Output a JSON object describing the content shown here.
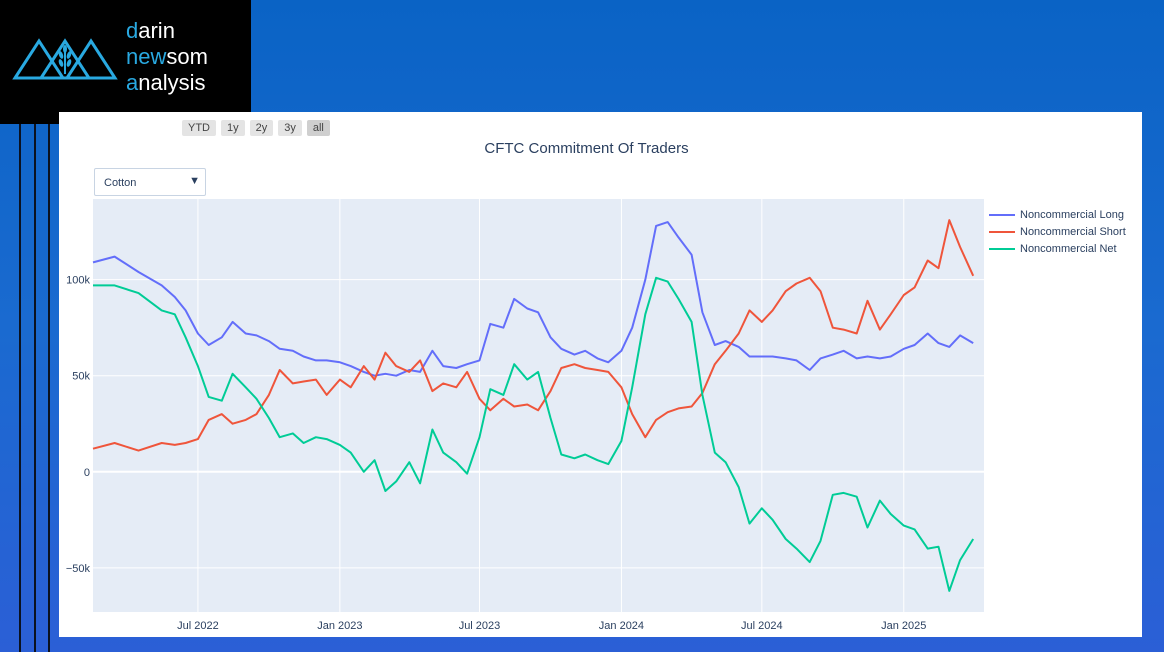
{
  "logo": {
    "line1_accent": "d",
    "line1_rest": "arin",
    "line2_accent": "new",
    "line2_rest": "som",
    "line3_accent": "a",
    "line3_rest": "nalysis"
  },
  "range_selector": {
    "buttons": [
      "YTD",
      "1y",
      "2y",
      "3y",
      "all"
    ],
    "active": "all"
  },
  "dropdown": {
    "selected": "Cotton",
    "arrow_icon": "triangle-down-icon"
  },
  "colors": {
    "long": "#636efa",
    "short": "#ef553b",
    "net": "#00cc96",
    "plot_bg": "#e5ecf6",
    "accent": "#29a9e1"
  },
  "chart_data": {
    "type": "line",
    "title": "CFTC Commitment Of Traders",
    "xlabel": "",
    "ylabel": "",
    "x_range": [
      "2022-02-15",
      "2025-04-15"
    ],
    "ylim": [
      -73000,
      142000
    ],
    "x_ticks": [
      {
        "date": "2022-07-01",
        "label": "Jul 2022"
      },
      {
        "date": "2023-01-01",
        "label": "Jan 2023"
      },
      {
        "date": "2023-07-01",
        "label": "Jul 2023"
      },
      {
        "date": "2024-01-01",
        "label": "Jan 2024"
      },
      {
        "date": "2024-07-01",
        "label": "Jul 2024"
      },
      {
        "date": "2025-01-01",
        "label": "Jan 2025"
      }
    ],
    "y_ticks": [
      {
        "value": -50000,
        "label": "−50k"
      },
      {
        "value": 0,
        "label": "0"
      },
      {
        "value": 50000,
        "label": "50k"
      },
      {
        "value": 100000,
        "label": "100k"
      }
    ],
    "grid": true,
    "legend_position": "top-right",
    "series": [
      {
        "name": "Noncommercial Long",
        "color": "#636efa",
        "points": [
          [
            "2022-02-15",
            109000
          ],
          [
            "2022-03-15",
            112000
          ],
          [
            "2022-04-15",
            104000
          ],
          [
            "2022-05-15",
            97000
          ],
          [
            "2022-06-01",
            91000
          ],
          [
            "2022-06-15",
            84000
          ],
          [
            "2022-07-01",
            72000
          ],
          [
            "2022-07-15",
            66000
          ],
          [
            "2022-08-01",
            70000
          ],
          [
            "2022-08-15",
            78000
          ],
          [
            "2022-09-01",
            72000
          ],
          [
            "2022-09-15",
            71000
          ],
          [
            "2022-10-01",
            68000
          ],
          [
            "2022-10-15",
            64000
          ],
          [
            "2022-11-01",
            63000
          ],
          [
            "2022-11-15",
            60000
          ],
          [
            "2022-12-01",
            58000
          ],
          [
            "2022-12-15",
            58000
          ],
          [
            "2023-01-01",
            57000
          ],
          [
            "2023-01-15",
            55000
          ],
          [
            "2023-02-01",
            52000
          ],
          [
            "2023-02-15",
            50000
          ],
          [
            "2023-03-01",
            51000
          ],
          [
            "2023-03-15",
            50000
          ],
          [
            "2023-04-01",
            53000
          ],
          [
            "2023-04-15",
            52000
          ],
          [
            "2023-05-01",
            63000
          ],
          [
            "2023-05-15",
            55000
          ],
          [
            "2023-06-01",
            54000
          ],
          [
            "2023-06-15",
            56000
          ],
          [
            "2023-07-01",
            58000
          ],
          [
            "2023-07-15",
            77000
          ],
          [
            "2023-08-01",
            75000
          ],
          [
            "2023-08-15",
            90000
          ],
          [
            "2023-09-01",
            85000
          ],
          [
            "2023-09-15",
            83000
          ],
          [
            "2023-10-01",
            70000
          ],
          [
            "2023-10-15",
            64000
          ],
          [
            "2023-11-01",
            61000
          ],
          [
            "2023-11-15",
            63000
          ],
          [
            "2023-12-01",
            59000
          ],
          [
            "2023-12-15",
            57000
          ],
          [
            "2024-01-01",
            63000
          ],
          [
            "2024-01-15",
            75000
          ],
          [
            "2024-02-01",
            100000
          ],
          [
            "2024-02-15",
            128000
          ],
          [
            "2024-03-01",
            130000
          ],
          [
            "2024-03-15",
            122000
          ],
          [
            "2024-04-01",
            113000
          ],
          [
            "2024-04-15",
            83000
          ],
          [
            "2024-05-01",
            66000
          ],
          [
            "2024-05-15",
            68000
          ],
          [
            "2024-06-01",
            65000
          ],
          [
            "2024-06-15",
            60000
          ],
          [
            "2024-07-01",
            60000
          ],
          [
            "2024-07-15",
            60000
          ],
          [
            "2024-08-01",
            59000
          ],
          [
            "2024-08-15",
            58000
          ],
          [
            "2024-09-01",
            53000
          ],
          [
            "2024-09-15",
            59000
          ],
          [
            "2024-10-01",
            61000
          ],
          [
            "2024-10-15",
            63000
          ],
          [
            "2024-11-01",
            59000
          ],
          [
            "2024-11-15",
            60000
          ],
          [
            "2024-12-01",
            59000
          ],
          [
            "2024-12-15",
            60000
          ],
          [
            "2025-01-01",
            64000
          ],
          [
            "2025-01-15",
            66000
          ],
          [
            "2025-02-01",
            72000
          ],
          [
            "2025-02-15",
            67000
          ],
          [
            "2025-03-01",
            65000
          ],
          [
            "2025-03-15",
            71000
          ],
          [
            "2025-04-01",
            67000
          ]
        ]
      },
      {
        "name": "Noncommercial Short",
        "color": "#ef553b",
        "points": [
          [
            "2022-02-15",
            12000
          ],
          [
            "2022-03-15",
            15000
          ],
          [
            "2022-04-15",
            11000
          ],
          [
            "2022-05-15",
            15000
          ],
          [
            "2022-06-01",
            14000
          ],
          [
            "2022-06-15",
            15000
          ],
          [
            "2022-07-01",
            17000
          ],
          [
            "2022-07-15",
            27000
          ],
          [
            "2022-08-01",
            30000
          ],
          [
            "2022-08-15",
            25000
          ],
          [
            "2022-09-01",
            27000
          ],
          [
            "2022-09-15",
            30000
          ],
          [
            "2022-10-01",
            40000
          ],
          [
            "2022-10-15",
            53000
          ],
          [
            "2022-11-01",
            46000
          ],
          [
            "2022-11-15",
            47000
          ],
          [
            "2022-12-01",
            48000
          ],
          [
            "2022-12-15",
            40000
          ],
          [
            "2023-01-01",
            48000
          ],
          [
            "2023-01-15",
            44000
          ],
          [
            "2023-02-01",
            55000
          ],
          [
            "2023-02-15",
            48000
          ],
          [
            "2023-03-01",
            62000
          ],
          [
            "2023-03-15",
            55000
          ],
          [
            "2023-04-01",
            52000
          ],
          [
            "2023-04-15",
            58000
          ],
          [
            "2023-05-01",
            42000
          ],
          [
            "2023-05-15",
            46000
          ],
          [
            "2023-06-01",
            44000
          ],
          [
            "2023-06-15",
            52000
          ],
          [
            "2023-07-01",
            38000
          ],
          [
            "2023-07-15",
            32000
          ],
          [
            "2023-08-01",
            38000
          ],
          [
            "2023-08-15",
            34000
          ],
          [
            "2023-09-01",
            35000
          ],
          [
            "2023-09-15",
            32000
          ],
          [
            "2023-10-01",
            42000
          ],
          [
            "2023-10-15",
            54000
          ],
          [
            "2023-11-01",
            56000
          ],
          [
            "2023-11-15",
            54000
          ],
          [
            "2023-12-01",
            53000
          ],
          [
            "2023-12-15",
            52000
          ],
          [
            "2024-01-01",
            44000
          ],
          [
            "2024-01-15",
            30000
          ],
          [
            "2024-02-01",
            18000
          ],
          [
            "2024-02-15",
            27000
          ],
          [
            "2024-03-01",
            31000
          ],
          [
            "2024-03-15",
            33000
          ],
          [
            "2024-04-01",
            34000
          ],
          [
            "2024-04-15",
            41000
          ],
          [
            "2024-05-01",
            56000
          ],
          [
            "2024-05-15",
            63000
          ],
          [
            "2024-06-01",
            72000
          ],
          [
            "2024-06-15",
            84000
          ],
          [
            "2024-07-01",
            78000
          ],
          [
            "2024-07-15",
            84000
          ],
          [
            "2024-08-01",
            94000
          ],
          [
            "2024-08-15",
            98000
          ],
          [
            "2024-09-01",
            101000
          ],
          [
            "2024-09-15",
            94000
          ],
          [
            "2024-10-01",
            75000
          ],
          [
            "2024-10-15",
            74000
          ],
          [
            "2024-11-01",
            72000
          ],
          [
            "2024-11-15",
            89000
          ],
          [
            "2024-12-01",
            74000
          ],
          [
            "2024-12-15",
            82000
          ],
          [
            "2025-01-01",
            92000
          ],
          [
            "2025-01-15",
            96000
          ],
          [
            "2025-02-01",
            110000
          ],
          [
            "2025-02-15",
            106000
          ],
          [
            "2025-03-01",
            131000
          ],
          [
            "2025-03-15",
            117000
          ],
          [
            "2025-04-01",
            102000
          ]
        ]
      },
      {
        "name": "Noncommercial Net",
        "color": "#00cc96",
        "points": [
          [
            "2022-02-15",
            97000
          ],
          [
            "2022-03-15",
            97000
          ],
          [
            "2022-04-15",
            93000
          ],
          [
            "2022-05-15",
            84000
          ],
          [
            "2022-06-01",
            82000
          ],
          [
            "2022-06-15",
            70000
          ],
          [
            "2022-07-01",
            55000
          ],
          [
            "2022-07-15",
            39000
          ],
          [
            "2022-08-01",
            37000
          ],
          [
            "2022-08-15",
            51000
          ],
          [
            "2022-09-01",
            44000
          ],
          [
            "2022-09-15",
            38000
          ],
          [
            "2022-10-01",
            28000
          ],
          [
            "2022-10-15",
            18000
          ],
          [
            "2022-11-01",
            20000
          ],
          [
            "2022-11-15",
            15000
          ],
          [
            "2022-12-01",
            18000
          ],
          [
            "2022-12-15",
            17000
          ],
          [
            "2023-01-01",
            14000
          ],
          [
            "2023-01-15",
            10000
          ],
          [
            "2023-02-01",
            0
          ],
          [
            "2023-02-15",
            6000
          ],
          [
            "2023-03-01",
            -10000
          ],
          [
            "2023-03-15",
            -5000
          ],
          [
            "2023-04-01",
            5000
          ],
          [
            "2023-04-15",
            -6000
          ],
          [
            "2023-05-01",
            22000
          ],
          [
            "2023-05-15",
            10000
          ],
          [
            "2023-06-01",
            5000
          ],
          [
            "2023-06-15",
            -1000
          ],
          [
            "2023-07-01",
            18000
          ],
          [
            "2023-07-15",
            43000
          ],
          [
            "2023-08-01",
            40000
          ],
          [
            "2023-08-15",
            56000
          ],
          [
            "2023-09-01",
            48000
          ],
          [
            "2023-09-15",
            52000
          ],
          [
            "2023-10-01",
            28000
          ],
          [
            "2023-10-15",
            9000
          ],
          [
            "2023-11-01",
            7000
          ],
          [
            "2023-11-15",
            9000
          ],
          [
            "2023-12-01",
            6000
          ],
          [
            "2023-12-15",
            4000
          ],
          [
            "2024-01-01",
            16000
          ],
          [
            "2024-01-15",
            44000
          ],
          [
            "2024-02-01",
            82000
          ],
          [
            "2024-02-15",
            101000
          ],
          [
            "2024-03-01",
            99000
          ],
          [
            "2024-03-15",
            90000
          ],
          [
            "2024-04-01",
            78000
          ],
          [
            "2024-04-15",
            40000
          ],
          [
            "2024-05-01",
            10000
          ],
          [
            "2024-05-15",
            5000
          ],
          [
            "2024-06-01",
            -8000
          ],
          [
            "2024-06-15",
            -27000
          ],
          [
            "2024-07-01",
            -19000
          ],
          [
            "2024-07-15",
            -25000
          ],
          [
            "2024-08-01",
            -35000
          ],
          [
            "2024-08-15",
            -40000
          ],
          [
            "2024-09-01",
            -47000
          ],
          [
            "2024-09-15",
            -36000
          ],
          [
            "2024-10-01",
            -12000
          ],
          [
            "2024-10-15",
            -11000
          ],
          [
            "2024-11-01",
            -13000
          ],
          [
            "2024-11-15",
            -29000
          ],
          [
            "2024-12-01",
            -15000
          ],
          [
            "2024-12-15",
            -22000
          ],
          [
            "2025-01-01",
            -28000
          ],
          [
            "2025-01-15",
            -30000
          ],
          [
            "2025-02-01",
            -40000
          ],
          [
            "2025-02-15",
            -39000
          ],
          [
            "2025-03-01",
            -62000
          ],
          [
            "2025-03-15",
            -46000
          ],
          [
            "2025-04-01",
            -35000
          ]
        ]
      }
    ]
  }
}
